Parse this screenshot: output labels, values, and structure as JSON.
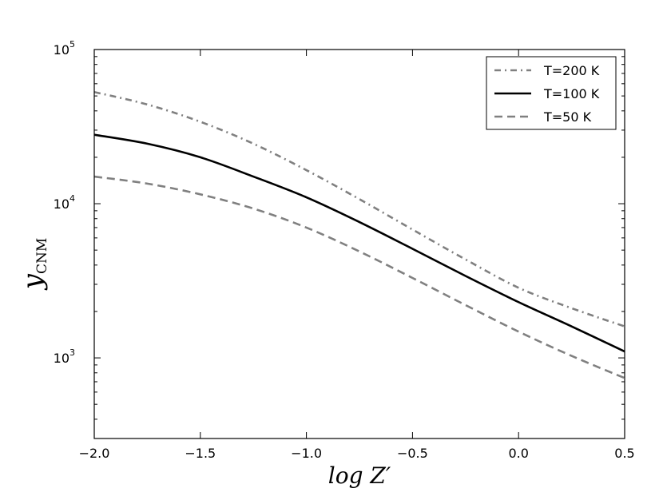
{
  "chart_data": {
    "type": "line",
    "title": "",
    "xlabel": "log Z′",
    "ylabel": "y",
    "ylabel_subscript": "CNM",
    "xlim": [
      -2.0,
      0.5
    ],
    "ylim": [
      300,
      100000
    ],
    "yscale": "log",
    "grid": false,
    "legend_position": "top-right",
    "x_ticks": [
      {
        "value": -2.0,
        "label": "−2.0"
      },
      {
        "value": -1.5,
        "label": "−1.5"
      },
      {
        "value": -1.0,
        "label": "−1.0"
      },
      {
        "value": -0.5,
        "label": "−0.5"
      },
      {
        "value": 0.0,
        "label": "0.0"
      },
      {
        "value": 0.5,
        "label": "0.5"
      }
    ],
    "y_ticks": [
      {
        "value": 1000,
        "base": "10",
        "exp": "3"
      },
      {
        "value": 10000,
        "base": "10",
        "exp": "4"
      },
      {
        "value": 100000,
        "base": "10",
        "exp": "5"
      }
    ],
    "series": [
      {
        "name": "T=200 K",
        "color": "#808080",
        "style": "dashdot",
        "x": [
          -2.0,
          -1.75,
          -1.5,
          -1.25,
          -1.0,
          -0.75,
          -0.5,
          -0.25,
          0.0,
          0.25,
          0.5
        ],
        "y": [
          53000,
          44000,
          34000,
          24500,
          16500,
          10700,
          6800,
          4350,
          2850,
          2100,
          1600
        ]
      },
      {
        "name": "T=100 K",
        "color": "#000000",
        "style": "solid",
        "x": [
          -2.0,
          -1.75,
          -1.5,
          -1.25,
          -1.0,
          -0.75,
          -0.5,
          -0.25,
          0.0,
          0.25,
          0.5
        ],
        "y": [
          28000,
          24500,
          20000,
          15000,
          11000,
          7600,
          5100,
          3400,
          2300,
          1600,
          1100
        ]
      },
      {
        "name": "T=50 K",
        "color": "#808080",
        "style": "dashed",
        "x": [
          -2.0,
          -1.75,
          -1.5,
          -1.25,
          -1.0,
          -0.75,
          -0.5,
          -0.25,
          0.0,
          0.25,
          0.5
        ],
        "y": [
          15000,
          13500,
          11500,
          9300,
          7000,
          4900,
          3300,
          2200,
          1480,
          1030,
          740
        ]
      }
    ]
  }
}
